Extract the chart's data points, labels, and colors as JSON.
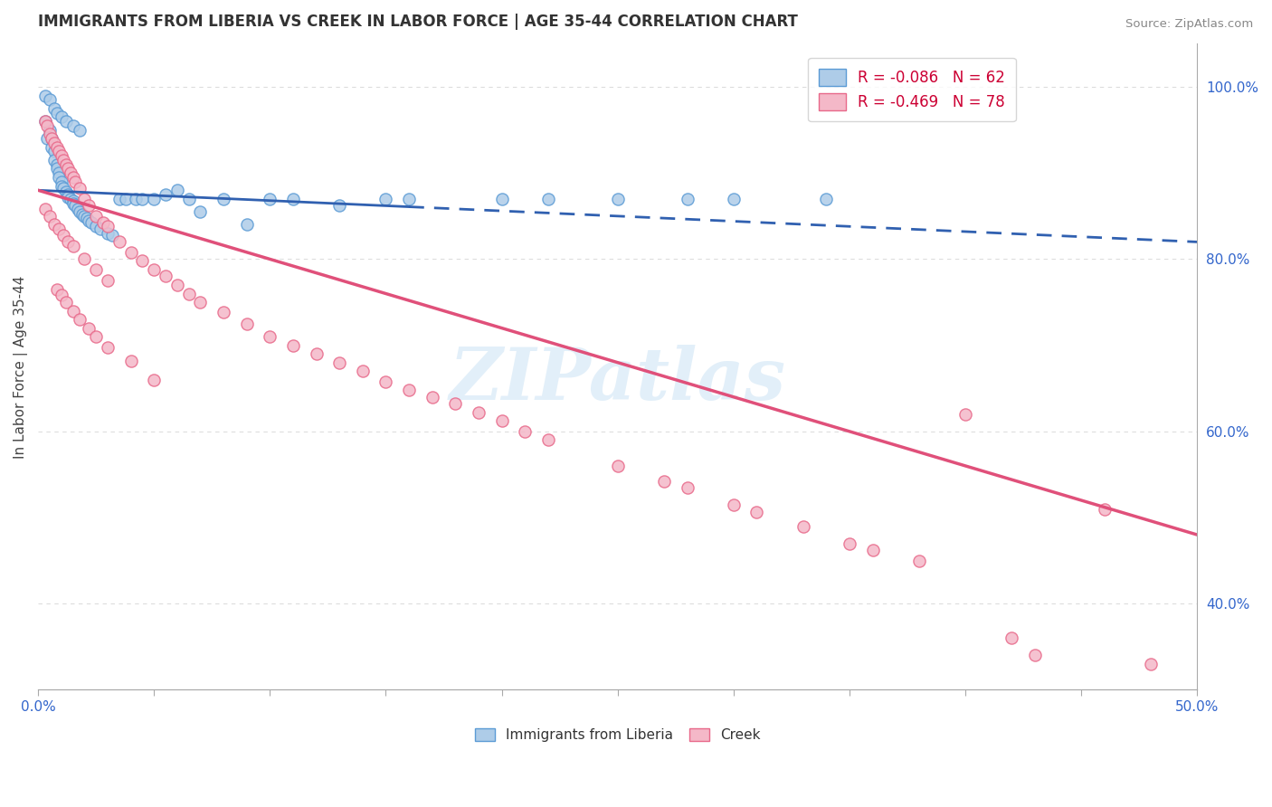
{
  "title": "IMMIGRANTS FROM LIBERIA VS CREEK IN LABOR FORCE | AGE 35-44 CORRELATION CHART",
  "source": "Source: ZipAtlas.com",
  "ylabel": "In Labor Force | Age 35-44",
  "xlim": [
    0.0,
    0.5
  ],
  "ylim": [
    0.3,
    1.05
  ],
  "yticks_right": [
    0.4,
    0.6,
    0.8,
    1.0
  ],
  "ytick_right_labels": [
    "40.0%",
    "60.0%",
    "80.0%",
    "100.0%"
  ],
  "blue_color": "#aecce8",
  "blue_edge": "#5b9bd5",
  "pink_color": "#f4b8c8",
  "pink_edge": "#e8698a",
  "blue_line_color": "#3060b0",
  "pink_line_color": "#e0507a",
  "blue_line_solid_end": 0.16,
  "blue_line_x0": 0.0,
  "blue_line_y0": 0.88,
  "blue_line_x1": 0.5,
  "blue_line_y1": 0.82,
  "pink_line_x0": 0.0,
  "pink_line_y0": 0.88,
  "pink_line_x1": 0.5,
  "pink_line_y1": 0.48,
  "watermark": "ZIPatlas",
  "bg": "#ffffff",
  "grid_color": "#dddddd",
  "blue_x": [
    0.003,
    0.004,
    0.005,
    0.006,
    0.006,
    0.007,
    0.007,
    0.008,
    0.008,
    0.009,
    0.009,
    0.01,
    0.01,
    0.011,
    0.012,
    0.013,
    0.013,
    0.014,
    0.015,
    0.015,
    0.016,
    0.017,
    0.018,
    0.019,
    0.02,
    0.021,
    0.022,
    0.023,
    0.025,
    0.027,
    0.03,
    0.032,
    0.035,
    0.038,
    0.042,
    0.045,
    0.05,
    0.055,
    0.06,
    0.065,
    0.07,
    0.08,
    0.09,
    0.1,
    0.11,
    0.13,
    0.15,
    0.16,
    0.2,
    0.22,
    0.25,
    0.28,
    0.3,
    0.34,
    0.003,
    0.005,
    0.007,
    0.008,
    0.01,
    0.012,
    0.015,
    0.018
  ],
  "blue_y": [
    0.96,
    0.94,
    0.95,
    0.94,
    0.93,
    0.925,
    0.915,
    0.91,
    0.905,
    0.9,
    0.895,
    0.89,
    0.885,
    0.882,
    0.878,
    0.875,
    0.872,
    0.87,
    0.868,
    0.865,
    0.862,
    0.858,
    0.855,
    0.852,
    0.85,
    0.848,
    0.845,
    0.842,
    0.838,
    0.835,
    0.83,
    0.828,
    0.87,
    0.87,
    0.87,
    0.87,
    0.87,
    0.875,
    0.88,
    0.87,
    0.855,
    0.87,
    0.84,
    0.87,
    0.87,
    0.862,
    0.87,
    0.87,
    0.87,
    0.87,
    0.87,
    0.87,
    0.87,
    0.87,
    0.99,
    0.985,
    0.975,
    0.97,
    0.965,
    0.96,
    0.955,
    0.95
  ],
  "pink_x": [
    0.003,
    0.004,
    0.005,
    0.006,
    0.007,
    0.008,
    0.009,
    0.01,
    0.011,
    0.012,
    0.013,
    0.014,
    0.015,
    0.016,
    0.018,
    0.02,
    0.022,
    0.025,
    0.028,
    0.03,
    0.035,
    0.04,
    0.045,
    0.05,
    0.055,
    0.06,
    0.065,
    0.07,
    0.08,
    0.09,
    0.1,
    0.11,
    0.12,
    0.13,
    0.14,
    0.15,
    0.16,
    0.17,
    0.18,
    0.19,
    0.2,
    0.21,
    0.22,
    0.25,
    0.27,
    0.28,
    0.3,
    0.31,
    0.33,
    0.35,
    0.36,
    0.38,
    0.4,
    0.42,
    0.43,
    0.46,
    0.48,
    0.003,
    0.005,
    0.007,
    0.009,
    0.011,
    0.013,
    0.015,
    0.02,
    0.025,
    0.03,
    0.008,
    0.01,
    0.012,
    0.015,
    0.018,
    0.022,
    0.025,
    0.03,
    0.04,
    0.05
  ],
  "pink_y": [
    0.96,
    0.955,
    0.945,
    0.94,
    0.935,
    0.93,
    0.925,
    0.92,
    0.915,
    0.91,
    0.905,
    0.9,
    0.895,
    0.89,
    0.882,
    0.87,
    0.862,
    0.85,
    0.842,
    0.838,
    0.82,
    0.808,
    0.798,
    0.788,
    0.78,
    0.77,
    0.76,
    0.75,
    0.738,
    0.725,
    0.71,
    0.7,
    0.69,
    0.68,
    0.67,
    0.658,
    0.648,
    0.64,
    0.632,
    0.622,
    0.612,
    0.6,
    0.59,
    0.56,
    0.542,
    0.535,
    0.515,
    0.506,
    0.49,
    0.47,
    0.462,
    0.45,
    0.62,
    0.36,
    0.34,
    0.51,
    0.33,
    0.858,
    0.85,
    0.84,
    0.835,
    0.828,
    0.82,
    0.815,
    0.8,
    0.788,
    0.775,
    0.765,
    0.758,
    0.75,
    0.74,
    0.73,
    0.72,
    0.71,
    0.698,
    0.682,
    0.66
  ]
}
